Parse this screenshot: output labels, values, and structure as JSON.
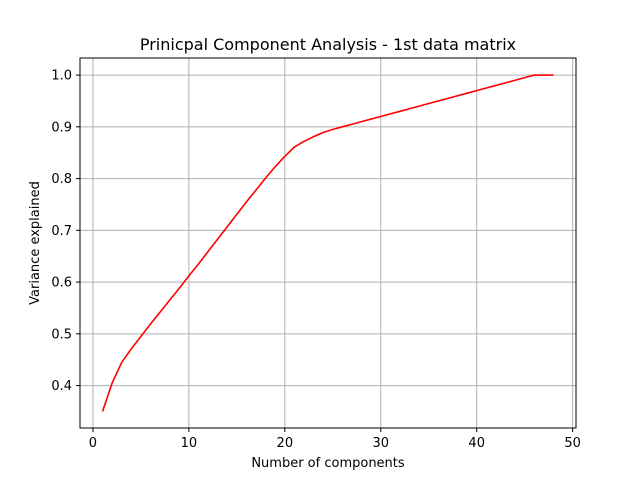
{
  "chart_data": {
    "type": "line",
    "title": "Prinicpal Component Analysis - 1st data matrix",
    "xlabel": "Number of components",
    "ylabel": "Variance explained",
    "xlim": [
      -1.35,
      50.35
    ],
    "ylim": [
      0.318,
      1.033
    ],
    "xticks": [
      0,
      10,
      20,
      30,
      40,
      50
    ],
    "yticks": [
      0.4,
      0.5,
      0.6,
      0.7,
      0.8,
      0.9,
      1.0
    ],
    "xtick_labels": [
      "0",
      "10",
      "20",
      "30",
      "40",
      "50"
    ],
    "ytick_labels": [
      "0.4",
      "0.5",
      "0.6",
      "0.7",
      "0.8",
      "0.9",
      "1.0"
    ],
    "grid": true,
    "series": [
      {
        "color": "#ff0000",
        "x": [
          1,
          2,
          3,
          4,
          5,
          6,
          7,
          8,
          9,
          10,
          11,
          12,
          13,
          14,
          15,
          16,
          17,
          18,
          19,
          20,
          21,
          22,
          23,
          24,
          25,
          26,
          27,
          28,
          29,
          30,
          31,
          32,
          33,
          34,
          35,
          36,
          37,
          38,
          39,
          40,
          41,
          42,
          43,
          44,
          45,
          46,
          47,
          48
        ],
        "y": [
          0.35,
          0.405,
          0.445,
          0.471,
          0.495,
          0.519,
          0.542,
          0.565,
          0.588,
          0.612,
          0.635,
          0.659,
          0.683,
          0.707,
          0.731,
          0.755,
          0.778,
          0.801,
          0.823,
          0.843,
          0.861,
          0.872,
          0.881,
          0.889,
          0.895,
          0.9,
          0.905,
          0.91,
          0.915,
          0.92,
          0.925,
          0.93,
          0.935,
          0.94,
          0.945,
          0.95,
          0.955,
          0.96,
          0.965,
          0.97,
          0.975,
          0.98,
          0.985,
          0.99,
          0.995,
          1.0,
          1.0,
          1.0
        ]
      }
    ]
  }
}
